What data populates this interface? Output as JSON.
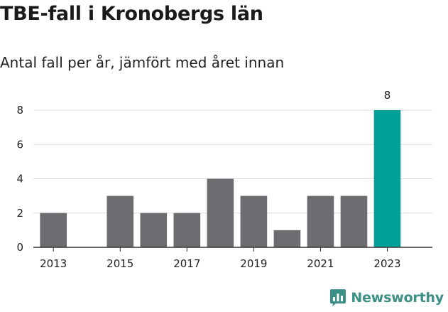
{
  "header": {
    "title": "TBE-fall i Kronobergs län",
    "subtitle": "Antal fall per år, jämfört med året innan"
  },
  "brand": {
    "name": "Newsworthy",
    "color": "#3a8f86",
    "icon": "bar-chart-logo-icon"
  },
  "chart_data": {
    "type": "bar",
    "categories": [
      "2013",
      "2014",
      "2015",
      "2016",
      "2017",
      "2018",
      "2019",
      "2020",
      "2021",
      "2022",
      "2023"
    ],
    "values": [
      2,
      0,
      3,
      2,
      2,
      4,
      3,
      1,
      3,
      3,
      8
    ],
    "x_tick_labels": [
      "2013",
      "2015",
      "2017",
      "2019",
      "2021",
      "2023"
    ],
    "y_ticks": [
      0,
      2,
      4,
      6,
      8
    ],
    "ylim": [
      0,
      8
    ],
    "grid": true,
    "colors": {
      "default": "#6d6c70",
      "highlight": "#00a096"
    },
    "highlight_index": 10,
    "data_labels": [
      {
        "index": 10,
        "text": "8"
      }
    ],
    "title": "",
    "xlabel": "",
    "ylabel": ""
  }
}
